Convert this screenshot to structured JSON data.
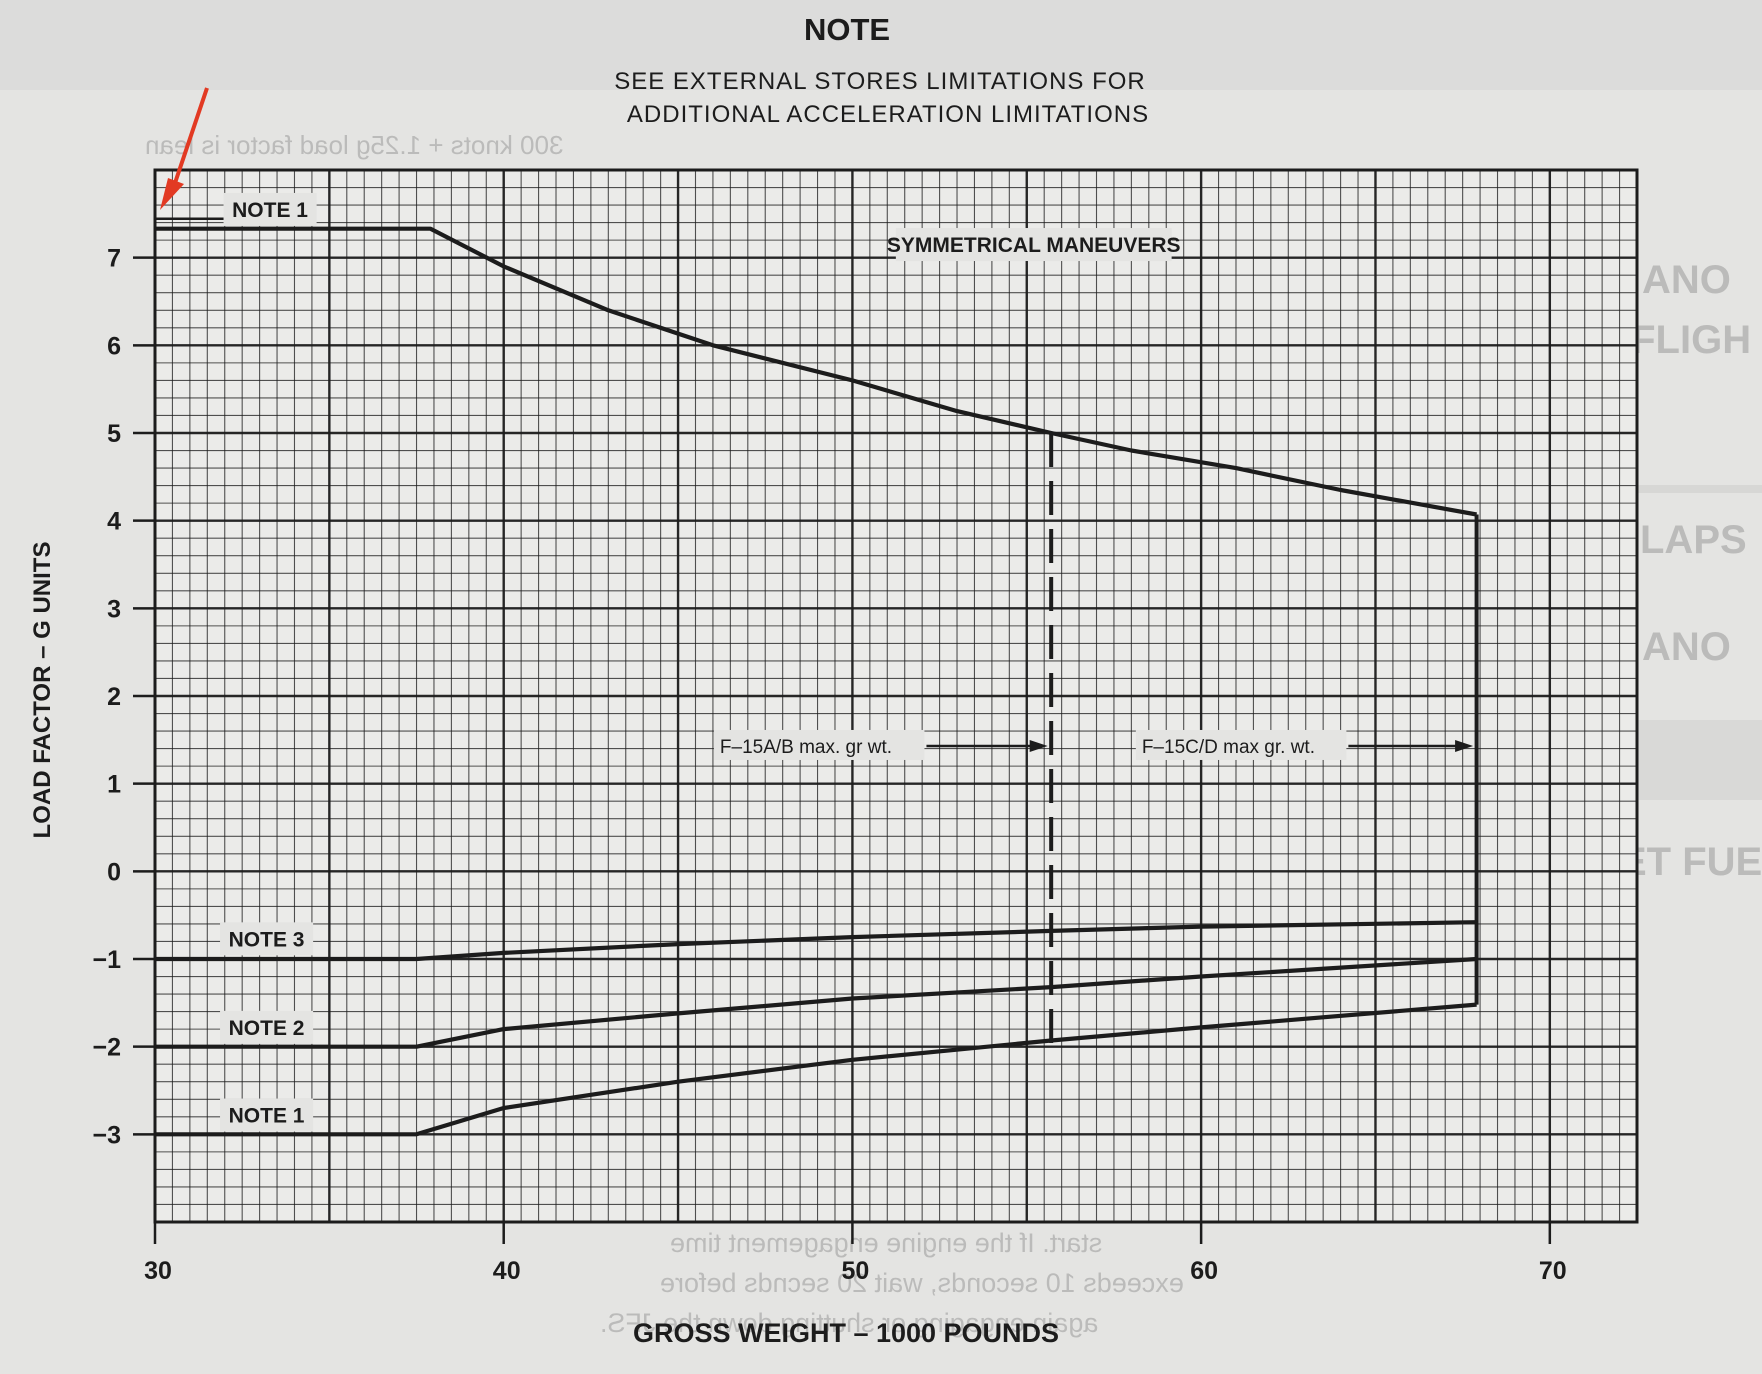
{
  "header": {
    "note_title": "NOTE",
    "note_line1": "SEE EXTERNAL STORES LIMITATIONS FOR",
    "note_line2": "ADDITIONAL ACCELERATION LIMITATIONS"
  },
  "background_text": {
    "line1": "300 knots + 1.25g load factor is lean",
    "line2": "ANO",
    "line3": "OR FLIGH",
    "line4": "LAPS",
    "line5": "ANO",
    "line6": "ET FUE",
    "para1": "start. If the engine engagement time",
    "para2": "exceeds 10 seconds, wait 20 secnds before",
    "para3": "again engaging or shutting down the JFS."
  },
  "annotation": {
    "arrow_color": "#e23a23"
  },
  "chart_data": {
    "type": "line",
    "title": "",
    "xlabel": "GROSS WEIGHT – 1000 POUNDS",
    "ylabel": "LOAD FACTOR – G UNITS",
    "xlim": [
      30,
      72.5
    ],
    "ylim": [
      -4,
      8
    ],
    "xticks": [
      30,
      40,
      50,
      60,
      70
    ],
    "xtick_labels": [
      "30",
      "40",
      "50",
      "60",
      "70"
    ],
    "yticks": [
      7,
      6,
      5,
      4,
      3,
      2,
      1,
      0,
      -1,
      -2,
      -3
    ],
    "ytick_labels": [
      "7",
      "6",
      "5",
      "4",
      "3",
      "2",
      "1",
      "0",
      "−1",
      "−2",
      "−3"
    ],
    "grid": true,
    "series": [
      {
        "name": "SYMMETRICAL MANEUVERS",
        "x": [
          30,
          37.9,
          40,
          43,
          46,
          50,
          53,
          55.7,
          58,
          61,
          64,
          67.9
        ],
        "y": [
          7.33,
          7.33,
          6.9,
          6.4,
          6.0,
          5.6,
          5.25,
          5.0,
          4.8,
          4.6,
          4.35,
          4.07
        ]
      },
      {
        "name": "NOTE 3",
        "x": [
          30,
          37.5,
          40,
          45,
          50,
          55.7,
          60,
          67.9
        ],
        "y": [
          -1.0,
          -1.0,
          -0.93,
          -0.83,
          -0.75,
          -0.68,
          -0.63,
          -0.58
        ]
      },
      {
        "name": "NOTE 2",
        "x": [
          30,
          37.5,
          40,
          45,
          50,
          55.7,
          60,
          67.9
        ],
        "y": [
          -2.0,
          -2.0,
          -1.8,
          -1.62,
          -1.45,
          -1.32,
          -1.2,
          -1.0
        ]
      },
      {
        "name": "NOTE 1",
        "x": [
          30,
          37.5,
          40,
          45,
          50,
          55.7,
          60,
          67.9
        ],
        "y": [
          -3.0,
          -3.0,
          -2.7,
          -2.4,
          -2.15,
          -1.93,
          -1.78,
          -1.52
        ]
      }
    ],
    "labels": {
      "note1_top": "NOTE 1",
      "symmetrical": "SYMMETRICAL MANEUVERS",
      "note3": "NOTE 3",
      "note2": "NOTE 2",
      "note1_bottom": "NOTE 1",
      "f15ab": "F–15A/B max. gr wt.",
      "f15cd": "F–15C/D max gr. wt."
    },
    "vlines": [
      {
        "name": "F-15A/B max gross weight",
        "x": 55.7,
        "style": "dashed"
      },
      {
        "name": "F-15C/D max gross weight",
        "x": 67.9,
        "style": "solid"
      }
    ]
  }
}
